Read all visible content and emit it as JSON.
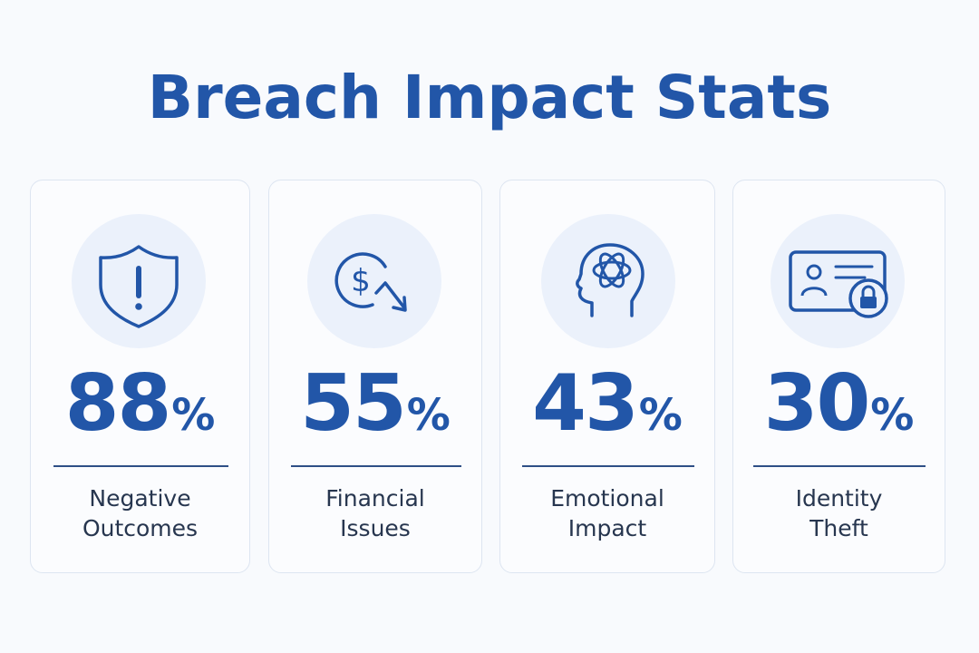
{
  "title": "Breach Impact Stats",
  "colors": {
    "accent": "#2256a8",
    "icon_bg": "#ebf1fb",
    "text_dark": "#27364f",
    "divider": "#2e4f86"
  },
  "cards": [
    {
      "icon": "shield-alert-icon",
      "value": "88",
      "unit": "%",
      "label_line1": "Negative",
      "label_line2": "Outcomes"
    },
    {
      "icon": "dollar-down-icon",
      "value": "55",
      "unit": "%",
      "label_line1": "Financial",
      "label_line2": "Issues"
    },
    {
      "icon": "brain-head-icon",
      "value": "43",
      "unit": "%",
      "label_line1": "Emotional",
      "label_line2": "Impact"
    },
    {
      "icon": "id-card-lock-icon",
      "value": "30",
      "unit": "%",
      "label_line1": "Identity",
      "label_line2": "Theft"
    }
  ]
}
